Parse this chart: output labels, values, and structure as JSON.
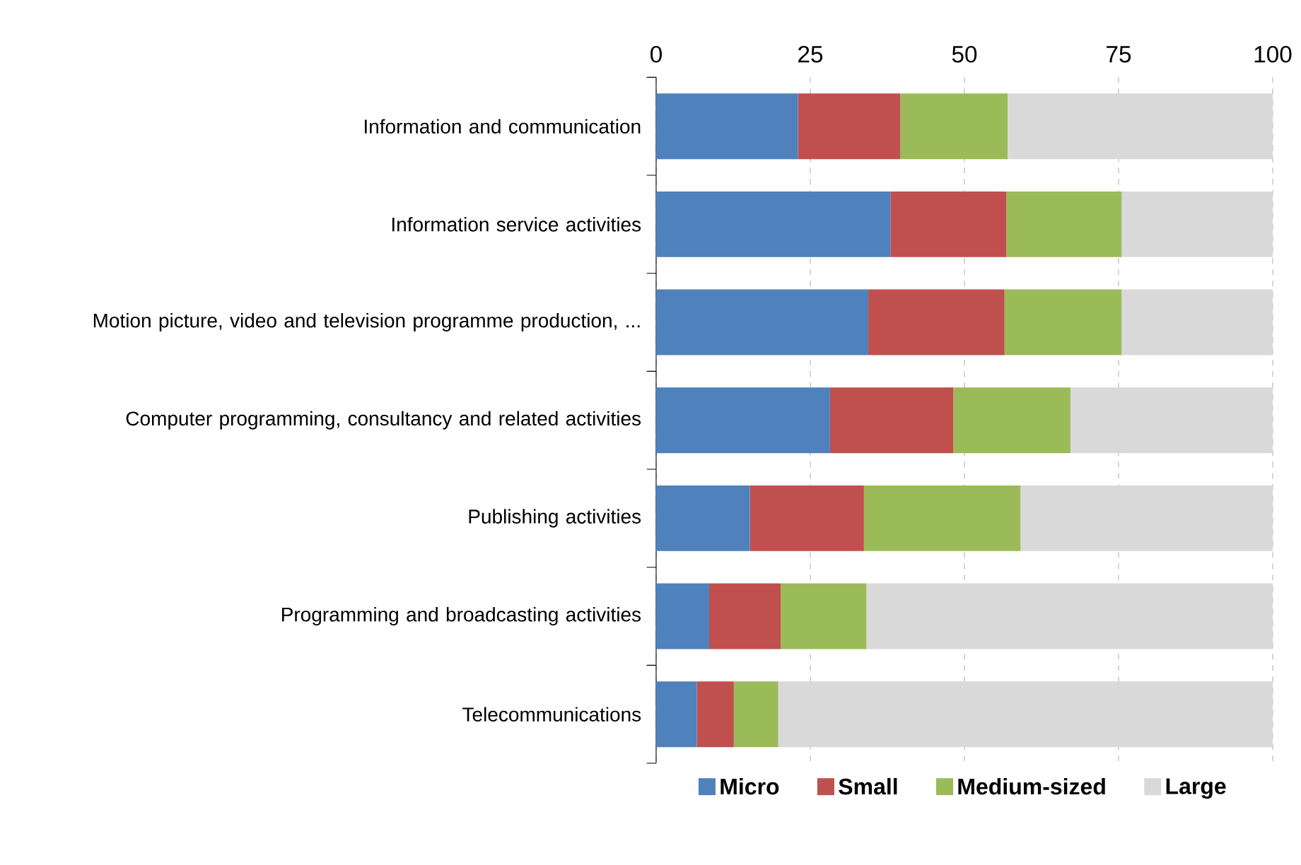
{
  "chart_data": {
    "type": "bar",
    "orientation": "horizontal",
    "stacked": true,
    "categories": [
      "Information and communication",
      "Information service activities",
      "Motion picture, video and television programme production, ...",
      "Computer programming, consultancy and related activities",
      "Publishing activities",
      "Programming and broadcasting activities",
      "Telecommunications"
    ],
    "series": [
      {
        "name": "Micro",
        "color": "#4f81bd",
        "values": [
          23.0,
          38.0,
          34.4,
          28.2,
          15.2,
          8.6,
          6.6
        ]
      },
      {
        "name": "Small",
        "color": "#c0504d",
        "values": [
          16.6,
          18.8,
          22.1,
          20.0,
          18.5,
          11.6,
          6.0
        ]
      },
      {
        "name": "Medium-sized",
        "color": "#9bbb59",
        "values": [
          17.4,
          18.7,
          19.0,
          19.0,
          25.4,
          13.9,
          7.2
        ]
      },
      {
        "name": "Large",
        "color": "#d9d9d9",
        "values": [
          43.0,
          24.5,
          24.5,
          32.8,
          40.9,
          65.9,
          80.2
        ]
      }
    ],
    "xlim": [
      0,
      100
    ],
    "xticks": [
      0,
      25,
      50,
      75,
      100
    ],
    "grid": "x",
    "legend": "bottom"
  }
}
